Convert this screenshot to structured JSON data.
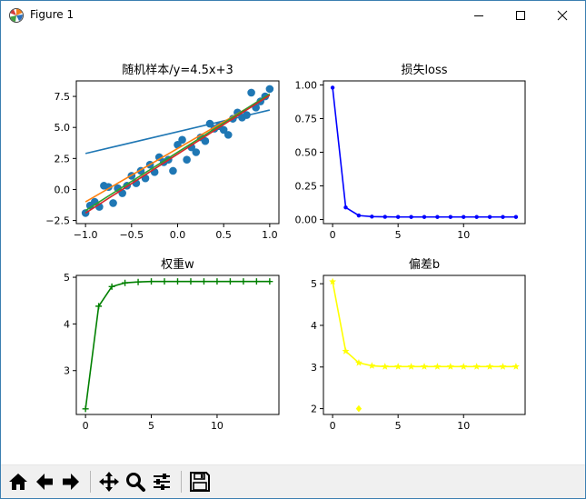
{
  "window": {
    "title": "Figure 1",
    "icons": {
      "app": "matplotlib-icon",
      "minimize": "minimize-icon",
      "maximize": "maximize-icon",
      "close": "close-icon"
    }
  },
  "toolbar": {
    "buttons": [
      {
        "name": "home-button",
        "icon": "home-icon"
      },
      {
        "name": "back-button",
        "icon": "arrow-left-icon"
      },
      {
        "name": "forward-button",
        "icon": "arrow-right-icon"
      },
      {
        "name": "pan-button",
        "icon": "move-icon"
      },
      {
        "name": "zoom-button",
        "icon": "magnifier-icon"
      },
      {
        "name": "subplots-button",
        "icon": "sliders-icon"
      },
      {
        "name": "save-button",
        "icon": "floppy-icon"
      }
    ]
  },
  "chart_data": [
    {
      "type": "scatter",
      "title": "随机样本/y=4.5x+3",
      "xlim": [
        -1.1,
        1.1
      ],
      "ylim": [
        -2.75,
        8.75
      ],
      "xticks": [
        -1.0,
        -0.5,
        0.0,
        0.5,
        1.0
      ],
      "xtick_labels": [
        "−1.0",
        "−0.5",
        "0.0",
        "0.5",
        "1.0"
      ],
      "yticks": [
        -2.5,
        0.0,
        2.5,
        5.0,
        7.5
      ],
      "ytick_labels": [
        "−2.5",
        "0.0",
        "2.5",
        "5.0",
        "7.5"
      ],
      "scatter": {
        "color": "#1f77b4",
        "x": [
          -1.0,
          -0.95,
          -0.9,
          -0.85,
          -0.8,
          -0.75,
          -0.7,
          -0.65,
          -0.6,
          -0.55,
          -0.5,
          -0.45,
          -0.4,
          -0.35,
          -0.3,
          -0.25,
          -0.2,
          -0.15,
          -0.1,
          -0.05,
          0.0,
          0.05,
          0.1,
          0.15,
          0.2,
          0.25,
          0.3,
          0.35,
          0.4,
          0.45,
          0.5,
          0.55,
          0.6,
          0.65,
          0.7,
          0.75,
          0.8,
          0.85,
          0.9,
          0.95,
          1.0
        ],
        "y": [
          -1.9,
          -1.3,
          -1.0,
          -1.4,
          0.3,
          0.2,
          -1.1,
          0.1,
          -0.3,
          0.3,
          1.1,
          0.5,
          1.5,
          0.9,
          2.0,
          1.4,
          2.6,
          2.2,
          2.4,
          1.5,
          3.6,
          4.0,
          2.4,
          3.4,
          3.0,
          4.2,
          3.9,
          5.3,
          4.9,
          5.1,
          4.8,
          4.4,
          5.7,
          6.2,
          5.8,
          6.0,
          7.8,
          6.6,
          7.1,
          7.5,
          8.1
        ]
      },
      "lines": [
        {
          "color": "#1f77b4",
          "x": [
            -1.0,
            1.0
          ],
          "y": [
            2.9,
            6.4
          ]
        },
        {
          "color": "#ff7f0e",
          "x": [
            -1.0,
            1.0
          ],
          "y": [
            -1.0,
            7.6
          ]
        },
        {
          "color": "#2ca02c",
          "x": [
            -1.0,
            1.0
          ],
          "y": [
            -1.7,
            7.7
          ]
        },
        {
          "color": "#d62728",
          "x": [
            -1.0,
            1.0
          ],
          "y": [
            -1.9,
            7.6
          ]
        }
      ]
    },
    {
      "type": "line",
      "title": "损失loss",
      "xlim": [
        -0.7,
        14.7
      ],
      "ylim": [
        -0.03,
        1.03
      ],
      "xticks": [
        0,
        5,
        10
      ],
      "xtick_labels": [
        "0",
        "5",
        "10"
      ],
      "yticks": [
        0.0,
        0.25,
        0.5,
        0.75,
        1.0
      ],
      "ytick_labels": [
        "0.00",
        "0.25",
        "0.50",
        "0.75",
        "1.00"
      ],
      "series": [
        {
          "color": "#0000ff",
          "marker": "dot",
          "x": [
            0,
            1,
            2,
            3,
            4,
            5,
            6,
            7,
            8,
            9,
            10,
            11,
            12,
            13,
            14
          ],
          "y": [
            0.98,
            0.09,
            0.03,
            0.022,
            0.02,
            0.019,
            0.019,
            0.019,
            0.019,
            0.019,
            0.019,
            0.019,
            0.019,
            0.019,
            0.019
          ]
        }
      ]
    },
    {
      "type": "line",
      "title": "权重w",
      "xlim": [
        -0.7,
        14.7
      ],
      "ylim": [
        2.06,
        5.04
      ],
      "xticks": [
        0,
        5,
        10
      ],
      "xtick_labels": [
        "0",
        "5",
        "10"
      ],
      "yticks": [
        3,
        4,
        5
      ],
      "ytick_labels": [
        "3",
        "4",
        "5"
      ],
      "series": [
        {
          "color": "#008000",
          "marker": "plus",
          "x": [
            0,
            1,
            2,
            3,
            4,
            5,
            6,
            7,
            8,
            9,
            10,
            11,
            12,
            13,
            14
          ],
          "y": [
            2.18,
            4.38,
            4.8,
            4.88,
            4.9,
            4.91,
            4.91,
            4.91,
            4.91,
            4.91,
            4.91,
            4.91,
            4.91,
            4.91,
            4.91
          ]
        }
      ]
    },
    {
      "type": "line",
      "title": "偏差b",
      "xlim": [
        -0.7,
        14.7
      ],
      "ylim": [
        1.86,
        5.2
      ],
      "xticks": [
        0,
        5,
        10
      ],
      "xtick_labels": [
        "0",
        "5",
        "10"
      ],
      "yticks": [
        2,
        3,
        4,
        5
      ],
      "ytick_labels": [
        "2",
        "3",
        "4",
        "5"
      ],
      "series": [
        {
          "color": "#ffff00",
          "marker": "star",
          "x": [
            0,
            1,
            2,
            3,
            4,
            5,
            6,
            7,
            8,
            9,
            10,
            11,
            12,
            13,
            14
          ],
          "y": [
            5.05,
            3.38,
            3.1,
            3.03,
            3.01,
            3.01,
            3.01,
            3.01,
            3.01,
            3.01,
            3.01,
            3.01,
            3.01,
            3.01,
            3.01
          ]
        }
      ],
      "extra_points": {
        "color": "#ffff00",
        "marker": "diamond",
        "x": [
          2
        ],
        "y": [
          2.0
        ]
      }
    }
  ]
}
